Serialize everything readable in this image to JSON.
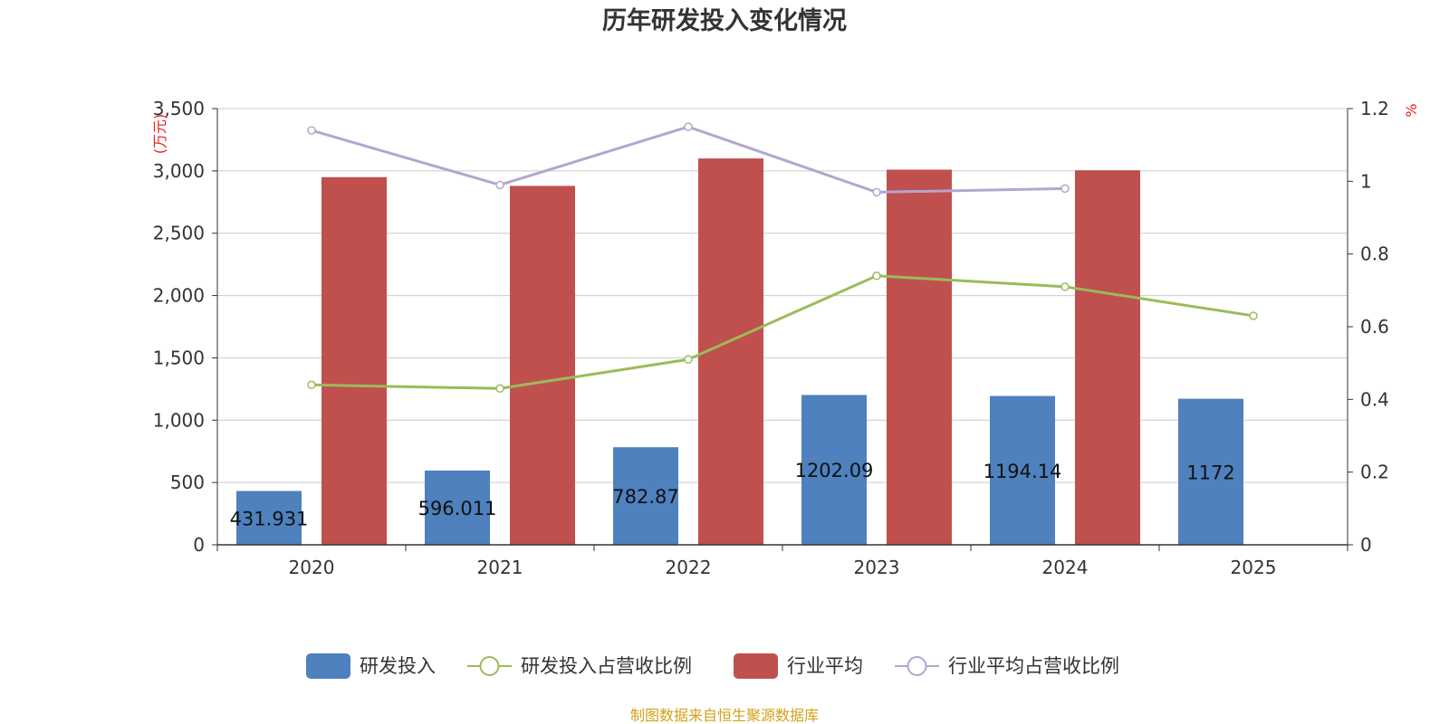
{
  "chart_data": {
    "type": "bar",
    "title": "历年研发投入变化情况",
    "categories": [
      "2020",
      "2021",
      "2022",
      "2023",
      "2024",
      "2025"
    ],
    "y_left": {
      "unit": "(万元)",
      "min": 0,
      "max": 3500,
      "ticks": [
        0,
        500,
        1000,
        1500,
        2000,
        2500,
        3000,
        3500
      ],
      "tick_labels": [
        "0",
        "500",
        "1,000",
        "1,500",
        "2,000",
        "2,500",
        "3,000",
        "3,500"
      ]
    },
    "y_right": {
      "unit": "%",
      "min": 0,
      "max": 1.2,
      "ticks": [
        0,
        0.2,
        0.4,
        0.6,
        0.8,
        1,
        1.2
      ],
      "tick_labels": [
        "0",
        "0.2",
        "0.4",
        "0.6",
        "0.8",
        "1",
        "1.2"
      ]
    },
    "series": [
      {
        "name": "研发投入",
        "kind": "bar",
        "axis": "left",
        "color": "#4e81bd",
        "values": [
          431.931,
          596.011,
          782.87,
          1202.09,
          1194.14,
          1172
        ],
        "labels": [
          "431.931",
          "596.011",
          "782.87",
          "1202.09",
          "1194.14",
          "1172"
        ]
      },
      {
        "name": "研发投入占营收比例",
        "kind": "line",
        "axis": "right",
        "color": "#9bbb59",
        "values": [
          0.44,
          0.43,
          0.51,
          0.74,
          0.71,
          0.63
        ]
      },
      {
        "name": "行业平均",
        "kind": "bar",
        "axis": "left",
        "color": "#c0504d",
        "values": [
          2950,
          2880,
          3100,
          3010,
          3005,
          null
        ]
      },
      {
        "name": "行业平均占营收比例",
        "kind": "line",
        "axis": "right",
        "color": "#b3a6cf",
        "values": [
          1.14,
          0.99,
          1.15,
          0.97,
          0.98,
          null
        ]
      }
    ],
    "legend_position": "bottom",
    "grid": true
  },
  "footer": {
    "source": "制图数据来自恒生聚源数据库"
  }
}
